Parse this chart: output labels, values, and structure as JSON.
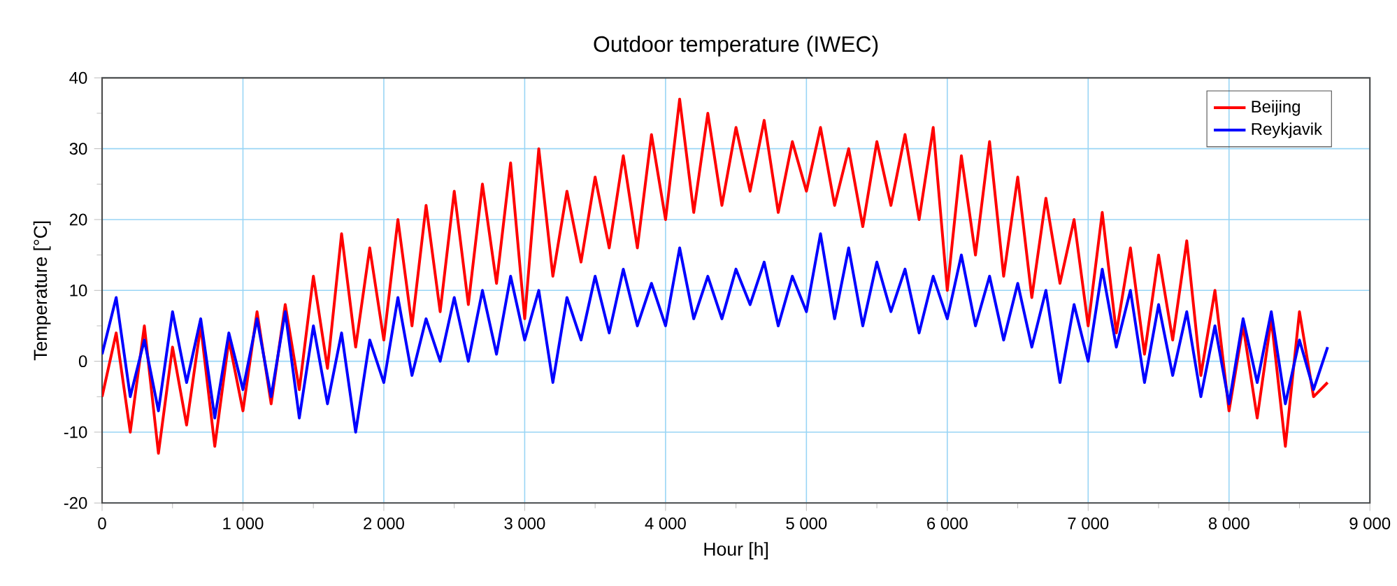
{
  "chart_data": {
    "type": "line",
    "title": "Outdoor temperature (IWEC)",
    "xlabel": "Hour [h]",
    "ylabel": "Temperature [°C]",
    "x": [
      0,
      100,
      200,
      300,
      400,
      500,
      600,
      700,
      800,
      900,
      1000,
      1100,
      1200,
      1300,
      1400,
      1500,
      1600,
      1700,
      1800,
      1900,
      2000,
      2100,
      2200,
      2300,
      2400,
      2500,
      2600,
      2700,
      2800,
      2900,
      3000,
      3100,
      3200,
      3300,
      3400,
      3500,
      3600,
      3700,
      3800,
      3900,
      4000,
      4100,
      4200,
      4300,
      4400,
      4500,
      4600,
      4700,
      4800,
      4900,
      5000,
      5100,
      5200,
      5300,
      5400,
      5500,
      5600,
      5700,
      5800,
      5900,
      6000,
      6100,
      6200,
      6300,
      6400,
      6500,
      6600,
      6700,
      6800,
      6900,
      7000,
      7100,
      7200,
      7300,
      7400,
      7500,
      7600,
      7700,
      7800,
      7900,
      8000,
      8100,
      8200,
      8300,
      8400,
      8500,
      8600,
      8700
    ],
    "series": [
      {
        "name": "Beijing",
        "color": "#ff0000",
        "values": [
          -5,
          4,
          -10,
          5,
          -13,
          2,
          -9,
          5,
          -12,
          3,
          -7,
          7,
          -6,
          8,
          -4,
          12,
          -1,
          18,
          2,
          16,
          3,
          20,
          5,
          22,
          7,
          24,
          8,
          25,
          11,
          28,
          6,
          30,
          12,
          24,
          14,
          26,
          16,
          29,
          16,
          32,
          20,
          37,
          21,
          35,
          22,
          33,
          24,
          34,
          21,
          31,
          24,
          33,
          22,
          30,
          19,
          31,
          22,
          32,
          20,
          33,
          10,
          29,
          15,
          31,
          12,
          26,
          9,
          23,
          11,
          20,
          5,
          21,
          4,
          16,
          1,
          15,
          3,
          17,
          -2,
          10,
          -7,
          5,
          -8,
          6,
          -12,
          7,
          -5,
          -3
        ]
      },
      {
        "name": "Reykjavik",
        "color": "#0000ff",
        "values": [
          1,
          9,
          -5,
          3,
          -7,
          7,
          -3,
          6,
          -8,
          4,
          -4,
          6,
          -5,
          7,
          -8,
          5,
          -6,
          4,
          -10,
          3,
          -3,
          9,
          -2,
          6,
          0,
          9,
          0,
          10,
          1,
          12,
          3,
          10,
          -3,
          9,
          3,
          12,
          4,
          13,
          5,
          11,
          5,
          16,
          6,
          12,
          6,
          13,
          8,
          14,
          5,
          12,
          7,
          18,
          6,
          16,
          5,
          14,
          7,
          13,
          4,
          12,
          6,
          15,
          5,
          12,
          3,
          11,
          2,
          10,
          -3,
          8,
          0,
          13,
          2,
          10,
          -3,
          8,
          -2,
          7,
          -5,
          5,
          -6,
          6,
          -3,
          7,
          -6,
          3,
          -4,
          2
        ]
      }
    ],
    "xlim": [
      0,
      9000
    ],
    "ylim": [
      -20,
      40
    ],
    "xticks": [
      0,
      {
        "value": 1000,
        "label": "1 000"
      },
      {
        "value": 2000,
        "label": "2 000"
      },
      {
        "value": 3000,
        "label": "3 000"
      },
      {
        "value": 4000,
        "label": "4 000"
      },
      {
        "value": 5000,
        "label": "5 000"
      },
      {
        "value": 6000,
        "label": "6 000"
      },
      {
        "value": 7000,
        "label": "7 000"
      },
      {
        "value": 8000,
        "label": "8 000"
      },
      {
        "value": 9000,
        "label": "9 000"
      }
    ],
    "yticks": [
      -20,
      -10,
      0,
      10,
      20,
      30,
      40
    ],
    "grid": true,
    "legend": "top right"
  }
}
